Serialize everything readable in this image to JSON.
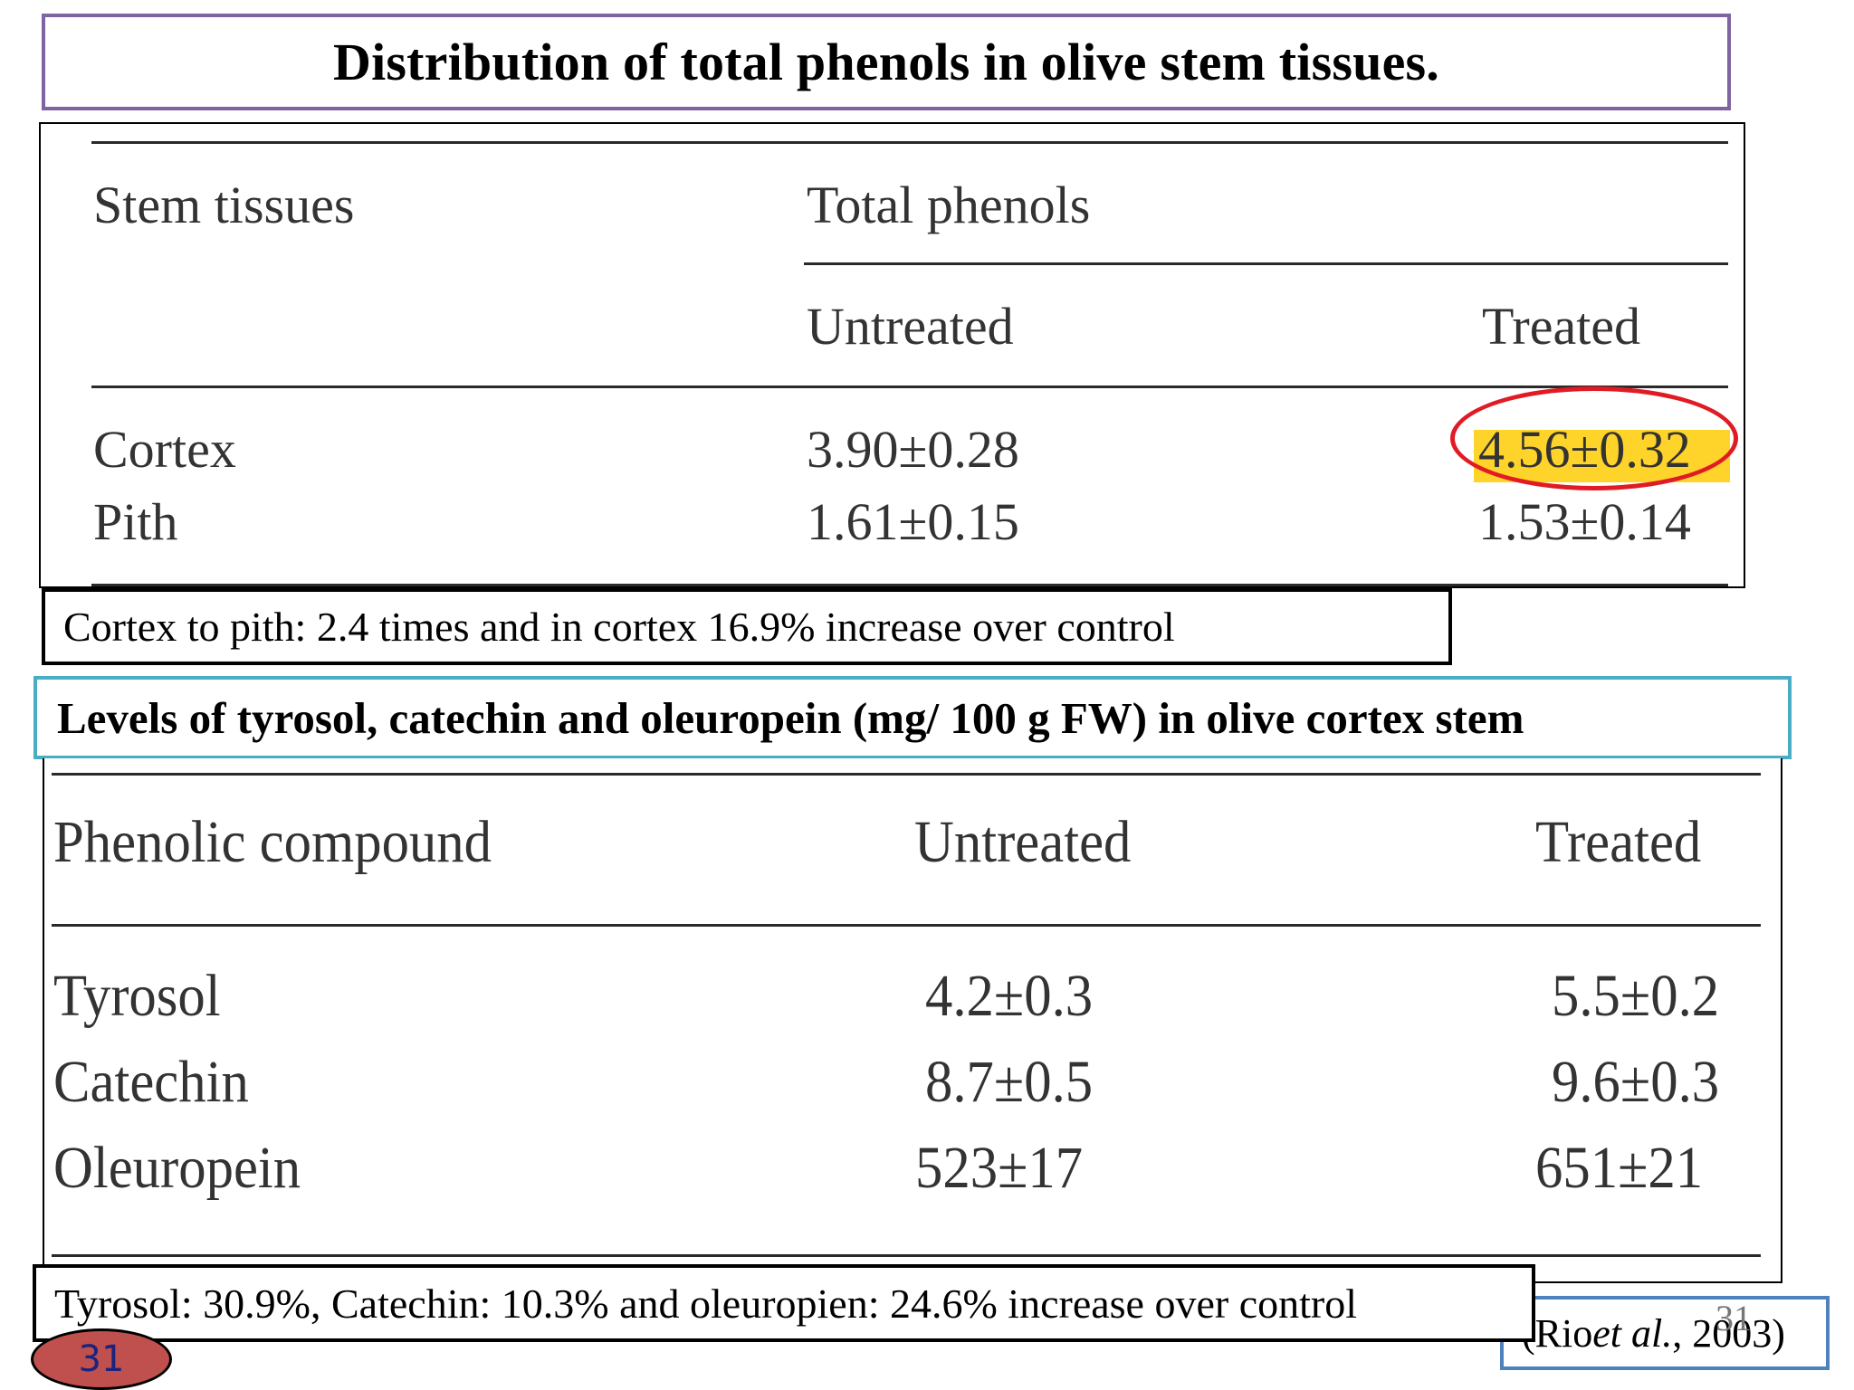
{
  "title": "Distribution of total phenols in olive stem tissues.",
  "table1": {
    "col_stem": "Stem tissues",
    "col_total": "Total phenols",
    "col_untreated": "Untreated",
    "col_treated": "Treated",
    "rows": [
      {
        "tissue": "Cortex",
        "untreated": "3.90±0.28",
        "treated": "4.56±0.32"
      },
      {
        "tissue": "Pith",
        "untreated": "1.61±0.15",
        "treated": "1.53±0.14"
      }
    ]
  },
  "note1": "Cortex to pith: 2.4 times and in cortex 16.9% increase over control",
  "levels_title": "Levels of tyrosol,  catechin and oleuropein (mg/ 100 g FW) in olive cortex stem",
  "table2": {
    "col_compound": "Phenolic compound",
    "col_untreated": "Untreated",
    "col_treated": "Treated",
    "rows": [
      {
        "compound": "Tyrosol",
        "untreated": "4.2±0.3",
        "treated": "5.5±0.2"
      },
      {
        "compound": "Catechin",
        "untreated": "8.7±0.5",
        "treated": "9.6±0.3"
      },
      {
        "compound": "Oleuropein",
        "untreated": "523±17",
        "treated": "651±21"
      }
    ]
  },
  "note2": "Tyrosol: 30.9%, Catechin: 10.3% and oleuropien: 24.6% increase over control",
  "citation": {
    "prefix": "(Rio ",
    "etal": "et al.",
    "suffix": ", 2003)"
  },
  "slide_number": "31",
  "badge_number": "31",
  "colors": {
    "title_border": "#8064a2",
    "levels_border": "#4bacc6",
    "citation_border": "#4f81bd",
    "highlight": "#ffd42a",
    "circle": "#e01b24",
    "badge_fill": "#c0504d"
  }
}
